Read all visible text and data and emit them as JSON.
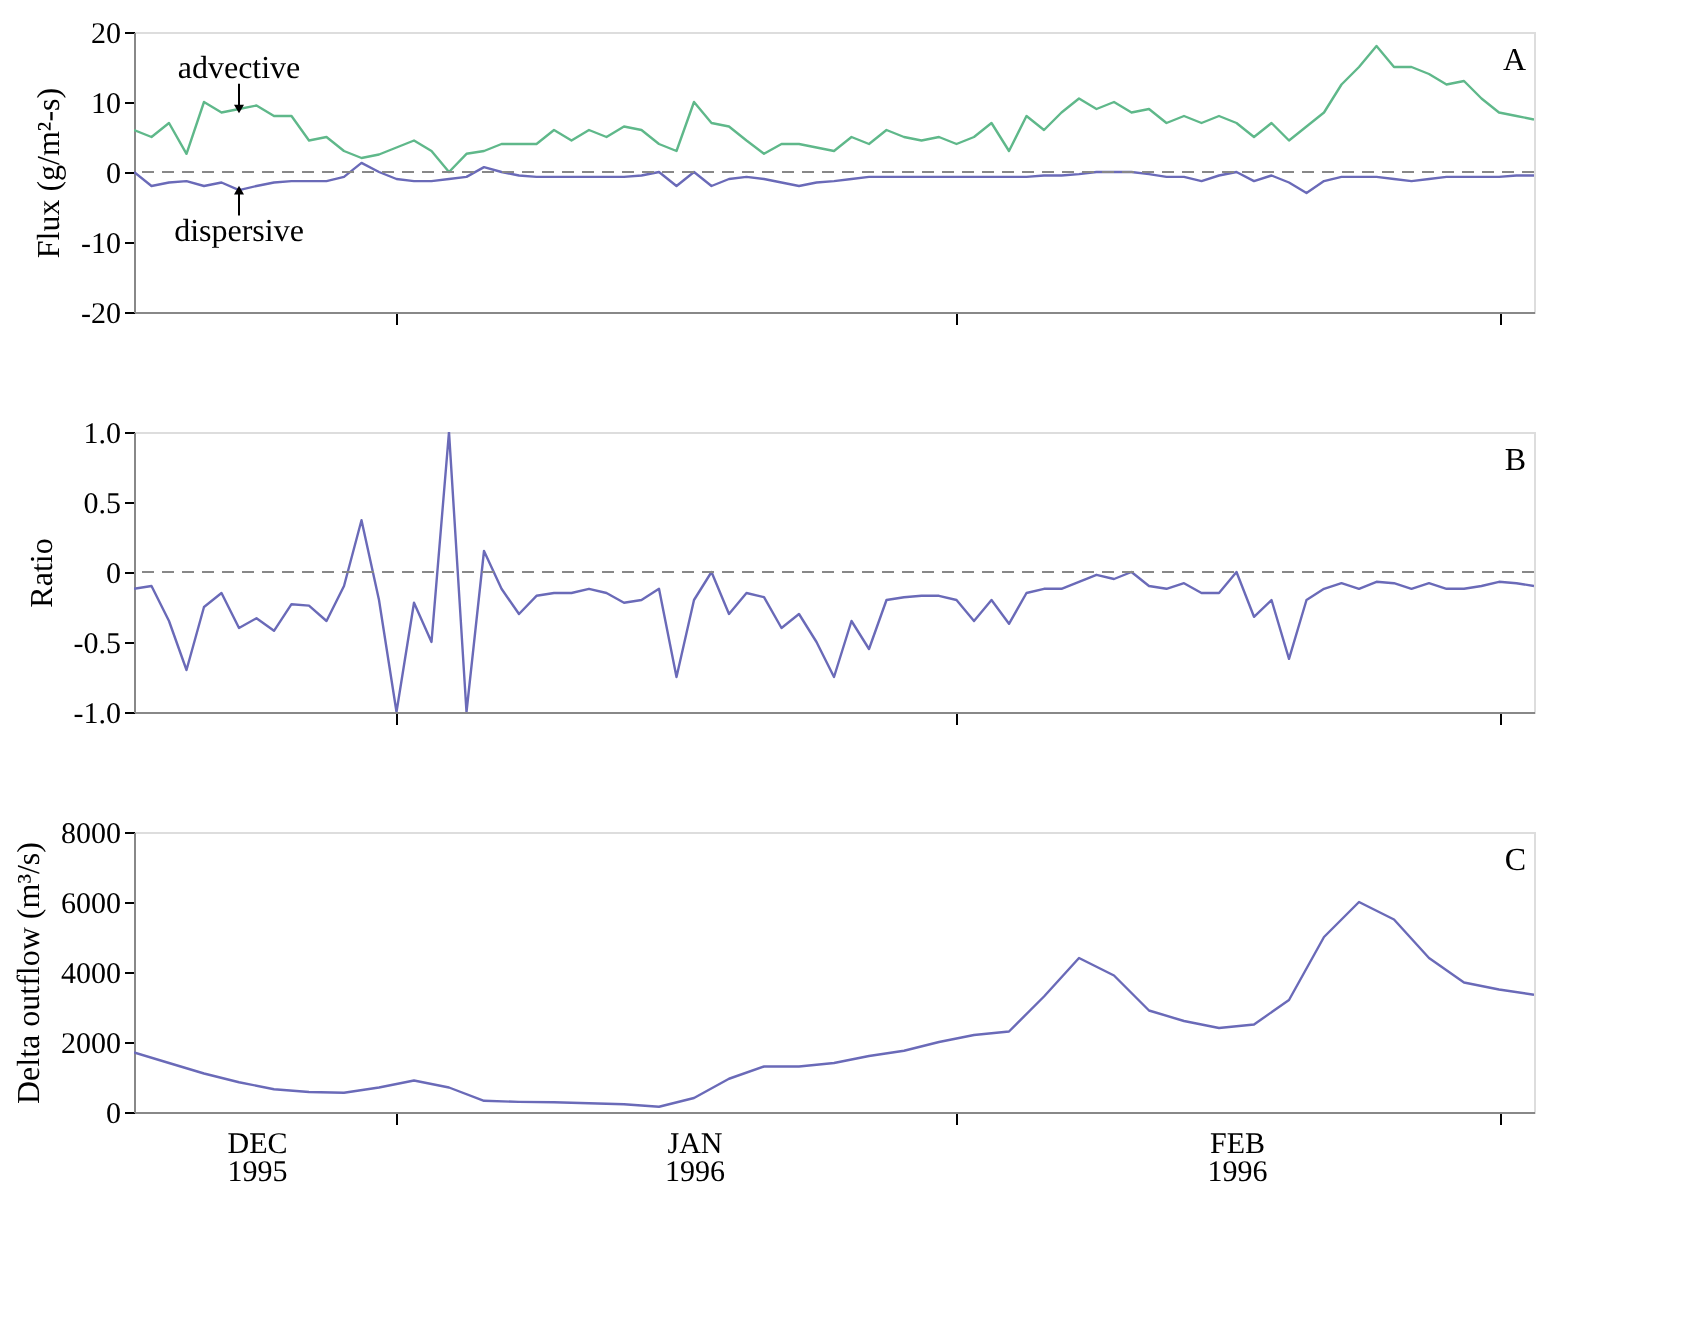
{
  "chart_data": [
    {
      "type": "line",
      "ylabel": "Flux (g/m²-s)",
      "xlim": [
        "1995-11-30",
        "1996-02-18"
      ],
      "ylim": [
        -20,
        20
      ],
      "yticks": [
        -20,
        -10,
        0,
        10,
        20
      ],
      "tick_labels": "y",
      "grid": false,
      "marker": "none",
      "line_style": "solid",
      "xticks": [
        {
          "value": "1995-12-15",
          "label": null
        },
        {
          "value": "1996-01-16",
          "label": null
        },
        {
          "value": "1996-02-16",
          "label": null
        }
      ],
      "x": [
        "1995-11-30",
        "1995-12-01",
        "1995-12-02",
        "1995-12-03",
        "1995-12-04",
        "1995-12-05",
        "1995-12-06",
        "1995-12-07",
        "1995-12-08",
        "1995-12-09",
        "1995-12-10",
        "1995-12-11",
        "1995-12-12",
        "1995-12-13",
        "1995-12-14",
        "1995-12-15",
        "1995-12-16",
        "1995-12-17",
        "1995-12-18",
        "1995-12-19",
        "1995-12-20",
        "1995-12-21",
        "1995-12-22",
        "1995-12-23",
        "1995-12-24",
        "1995-12-25",
        "1995-12-26",
        "1995-12-27",
        "1995-12-28",
        "1995-12-29",
        "1995-12-30",
        "1995-12-31",
        "1996-01-01",
        "1996-01-02",
        "1996-01-03",
        "1996-01-04",
        "1996-01-05",
        "1996-01-06",
        "1996-01-07",
        "1996-01-08",
        "1996-01-09",
        "1996-01-10",
        "1996-01-11",
        "1996-01-12",
        "1996-01-13",
        "1996-01-14",
        "1996-01-15",
        "1996-01-16",
        "1996-01-17",
        "1996-01-18",
        "1996-01-19",
        "1996-01-20",
        "1996-01-21",
        "1996-01-22",
        "1996-01-23",
        "1996-01-24",
        "1996-01-25",
        "1996-01-26",
        "1996-01-27",
        "1996-01-28",
        "1996-01-29",
        "1996-01-30",
        "1996-01-31",
        "1996-02-01",
        "1996-02-02",
        "1996-02-03",
        "1996-02-04",
        "1996-02-05",
        "1996-02-06",
        "1996-02-07",
        "1996-02-08",
        "1996-02-09",
        "1996-02-10",
        "1996-02-11",
        "1996-02-12",
        "1996-02-13",
        "1996-02-14",
        "1996-02-15",
        "1996-02-16",
        "1996-02-17",
        "1996-02-18"
      ],
      "series": [
        {
          "color": "#5fb88a",
          "values": [
            6,
            5,
            7,
            2.6,
            10,
            8.5,
            9,
            9.5,
            8,
            8,
            4.5,
            5,
            3,
            2,
            2.5,
            3.5,
            4.5,
            3,
            0,
            2.6,
            3,
            4,
            4,
            4,
            6,
            4.5,
            6,
            5,
            6.5,
            6,
            4,
            3,
            10,
            7,
            6.5,
            4.5,
            2.6,
            4,
            4,
            3.5,
            3,
            5,
            4,
            6,
            5,
            4.5,
            5,
            4,
            5,
            7,
            3,
            8,
            6,
            8.5,
            10.5,
            9,
            10,
            8.5,
            9,
            7,
            8,
            7,
            8,
            7,
            5,
            7,
            4.5,
            6.5,
            8.5,
            12.5,
            15,
            18,
            15,
            15,
            14,
            12.5,
            13,
            10.5,
            8.5,
            8,
            7.5
          ]
        },
        {
          "color": "#6a6ab8",
          "values": [
            0,
            -2,
            -1.5,
            -1.3,
            -2,
            -1.5,
            -2.6,
            -2,
            -1.5,
            -1.3,
            -1.3,
            -1.3,
            -0.7,
            1.3,
            0,
            -1,
            -1.3,
            -1.3,
            -1,
            -0.7,
            0.7,
            0,
            -0.5,
            -0.7,
            -0.7,
            -0.7,
            -0.7,
            -0.7,
            -0.7,
            -0.5,
            0,
            -2,
            0,
            -2,
            -1,
            -0.7,
            -1,
            -1.5,
            -2,
            -1.5,
            -1.3,
            -1,
            -0.7,
            -0.7,
            -0.7,
            -0.7,
            -0.7,
            -0.7,
            -0.7,
            -0.7,
            -0.7,
            -0.7,
            -0.5,
            -0.5,
            -0.3,
            0,
            0,
            0,
            -0.3,
            -0.7,
            -0.7,
            -1.3,
            -0.5,
            0,
            -1.3,
            -0.5,
            -1.5,
            -3,
            -1.3,
            -0.7,
            -0.7,
            -0.7,
            -1,
            -1.3,
            -1,
            -0.7,
            -0.7,
            -0.7,
            -0.7,
            -0.5,
            -0.5
          ]
        }
      ],
      "ref_lines": [
        {
          "axis": "y",
          "value": 0,
          "color": "#888888",
          "line_style": "dashed"
        }
      ],
      "annotations": [
        {
          "text": "advective",
          "x": "1995-12-06",
          "y": 9
        },
        {
          "text": "dispersive",
          "x": "1995-12-06",
          "y": -2.6
        },
        "A"
      ]
    },
    {
      "type": "line",
      "ylabel": "Ratio",
      "xlim": [
        "1995-11-30",
        "1996-02-18"
      ],
      "ylim": [
        -1.0,
        1.0
      ],
      "yticks": [
        {
          "value": -1.0,
          "label": "-1.0"
        },
        -0.5,
        0,
        0.5,
        {
          "value": 1.0,
          "label": "1.0"
        }
      ],
      "tick_labels": "y",
      "grid": false,
      "marker": "none",
      "line_style": "solid",
      "xticks": [
        {
          "value": "1995-12-15",
          "label": null
        },
        {
          "value": "1996-01-16",
          "label": null
        },
        {
          "value": "1996-02-16",
          "label": null
        }
      ],
      "x": [
        "1995-11-30",
        "1995-12-01",
        "1995-12-02",
        "1995-12-03",
        "1995-12-04",
        "1995-12-05",
        "1995-12-06",
        "1995-12-07",
        "1995-12-08",
        "1995-12-09",
        "1995-12-10",
        "1995-12-11",
        "1995-12-12",
        "1995-12-13",
        "1995-12-14",
        "1995-12-15",
        "1995-12-16",
        "1995-12-17",
        "1995-12-18",
        "1995-12-19",
        "1995-12-20",
        "1995-12-21",
        "1995-12-22",
        "1995-12-23",
        "1995-12-24",
        "1995-12-25",
        "1995-12-26",
        "1995-12-27",
        "1995-12-28",
        "1995-12-29",
        "1995-12-30",
        "1995-12-31",
        "1996-01-01",
        "1996-01-02",
        "1996-01-03",
        "1996-01-04",
        "1996-01-05",
        "1996-01-06",
        "1996-01-07",
        "1996-01-08",
        "1996-01-09",
        "1996-01-10",
        "1996-01-11",
        "1996-01-12",
        "1996-01-13",
        "1996-01-14",
        "1996-01-15",
        "1996-01-16",
        "1996-01-17",
        "1996-01-18",
        "1996-01-19",
        "1996-01-20",
        "1996-01-21",
        "1996-01-22",
        "1996-01-23",
        "1996-01-24",
        "1996-01-25",
        "1996-01-26",
        "1996-01-27",
        "1996-01-28",
        "1996-01-29",
        "1996-01-30",
        "1996-01-31",
        "1996-02-01",
        "1996-02-02",
        "1996-02-03",
        "1996-02-04",
        "1996-02-05",
        "1996-02-06",
        "1996-02-07",
        "1996-02-08",
        "1996-02-09",
        "1996-02-10",
        "1996-02-11",
        "1996-02-12",
        "1996-02-13",
        "1996-02-14",
        "1996-02-15",
        "1996-02-16",
        "1996-02-17",
        "1996-02-18"
      ],
      "series": [
        {
          "color": "#6a6ab8",
          "values": [
            -0.12,
            -0.1,
            -0.35,
            -0.7,
            -0.25,
            -0.15,
            -0.4,
            -0.33,
            -0.42,
            -0.23,
            -0.24,
            -0.35,
            -0.1,
            0.37,
            -0.2,
            -1.0,
            -0.22,
            -0.5,
            1.0,
            -1.0,
            0.15,
            -0.12,
            -0.3,
            -0.17,
            -0.15,
            -0.15,
            -0.12,
            -0.15,
            -0.22,
            -0.2,
            -0.12,
            -0.75,
            -0.2,
            0.0,
            -0.3,
            -0.15,
            -0.18,
            -0.4,
            -0.3,
            -0.5,
            -0.75,
            -0.35,
            -0.55,
            -0.2,
            -0.18,
            -0.17,
            -0.17,
            -0.2,
            -0.35,
            -0.2,
            -0.37,
            -0.15,
            -0.12,
            -0.12,
            -0.07,
            -0.02,
            -0.05,
            0.0,
            -0.1,
            -0.12,
            -0.08,
            -0.15,
            -0.15,
            0.0,
            -0.32,
            -0.2,
            -0.62,
            -0.2,
            -0.12,
            -0.08,
            -0.12,
            -0.07,
            -0.08,
            -0.12,
            -0.08,
            -0.12,
            -0.12,
            -0.1,
            -0.07,
            -0.08,
            -0.1
          ]
        }
      ],
      "ref_lines": [
        {
          "axis": "y",
          "value": 0,
          "color": "#888888",
          "line_style": "dashed"
        }
      ],
      "annotations": [
        "B"
      ]
    },
    {
      "type": "line",
      "ylabel": "Delta outflow (m³/s)",
      "xlim": [
        "1995-11-30",
        "1996-02-18"
      ],
      "ylim": [
        0,
        8000
      ],
      "yticks": [
        0,
        2000,
        4000,
        6000,
        8000
      ],
      "grid": false,
      "marker": "none",
      "line_style": "solid",
      "xticks": [
        {
          "value": "1995-12-07",
          "label": "DEC 1995"
        },
        {
          "value": "1995-12-15",
          "label": null
        },
        {
          "value": "1996-01-01",
          "label": "JAN 1996"
        },
        {
          "value": "1996-01-16",
          "label": null
        },
        {
          "value": "1996-02-01",
          "label": "FEB 1996"
        },
        {
          "value": "1996-02-16",
          "label": null
        }
      ],
      "x": [
        "1995-11-30",
        "1995-12-02",
        "1995-12-04",
        "1995-12-06",
        "1995-12-08",
        "1995-12-10",
        "1995-12-12",
        "1995-12-14",
        "1995-12-16",
        "1995-12-18",
        "1995-12-20",
        "1995-12-22",
        "1995-12-24",
        "1995-12-26",
        "1995-12-28",
        "1995-12-30",
        "1996-01-01",
        "1996-01-03",
        "1996-01-05",
        "1996-01-07",
        "1996-01-09",
        "1996-01-11",
        "1996-01-13",
        "1996-01-15",
        "1996-01-17",
        "1996-01-19",
        "1996-01-21",
        "1996-01-23",
        "1996-01-25",
        "1996-01-27",
        "1996-01-29",
        "1996-01-31",
        "1996-02-02",
        "1996-02-04",
        "1996-02-06",
        "1996-02-08",
        "1996-02-10",
        "1996-02-12",
        "1996-02-14",
        "1996-02-16",
        "1996-02-18"
      ],
      "series": [
        {
          "color": "#6a6ab8",
          "values": [
            1700,
            1400,
            1100,
            850,
            650,
            570,
            550,
            700,
            900,
            700,
            320,
            290,
            280,
            250,
            220,
            150,
            400,
            950,
            1300,
            1300,
            1400,
            1600,
            1750,
            2000,
            2200,
            2300,
            3300,
            4400,
            3900,
            2900,
            2600,
            2400,
            2500,
            3200,
            5000,
            6000,
            5500,
            4400,
            3700,
            3500,
            3350
          ]
        }
      ],
      "annotations": [
        "C"
      ]
    }
  ]
}
